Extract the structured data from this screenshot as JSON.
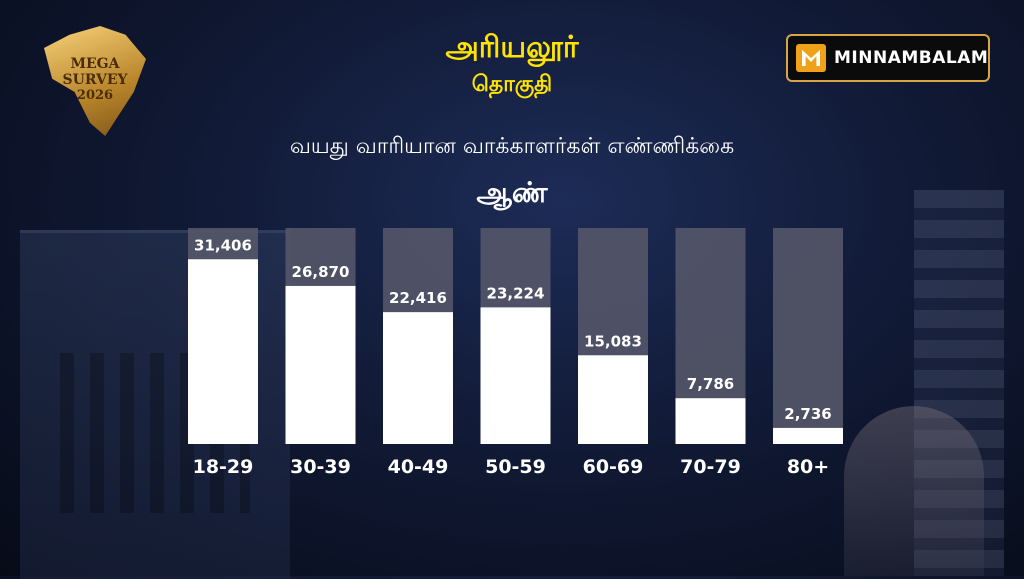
{
  "header": {
    "title": "அரியலூர்",
    "subtitle": "தொகுதி"
  },
  "badge": {
    "line1": "MEGA SURVEY",
    "line2": "2026"
  },
  "logo": {
    "text": "MINNAMBALAM",
    "icon": "minnambalam-m-icon",
    "color": "#f0a11a"
  },
  "chart_data": {
    "type": "bar",
    "title": "வயது வாரியான வாக்காளர்கள் எண்ணிக்கை",
    "subtitle": "ஆண்",
    "categories": [
      "18-29",
      "30-39",
      "40-49",
      "50-59",
      "60-69",
      "70-79",
      "80+"
    ],
    "values": [
      31406,
      26870,
      22416,
      23224,
      15083,
      7786,
      2736
    ],
    "value_labels": [
      "31,406",
      "26,870",
      "22,416",
      "23,224",
      "15,083",
      "7,786",
      "2,736"
    ],
    "xlabel": "",
    "ylabel": "",
    "ylim": [
      0,
      34000
    ],
    "grid": false,
    "bar_color": "#ffffff",
    "bar_track_color": "#56586a"
  }
}
